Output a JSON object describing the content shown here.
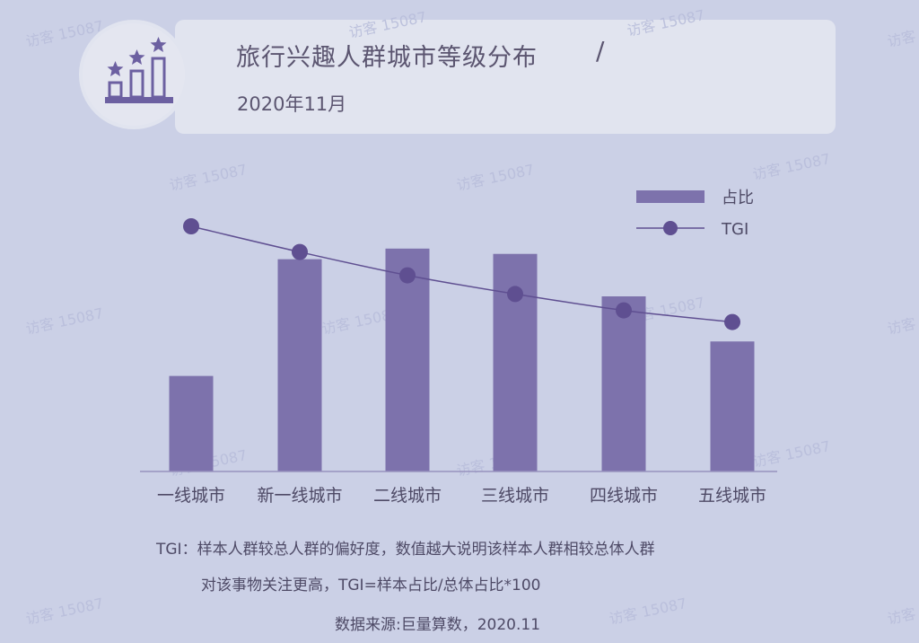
{
  "header": {
    "title": "旅行兴趣人群城市等级分布",
    "title_separator": "/",
    "subtitle": "2020年11月",
    "icon": "stars-podium-icon"
  },
  "chart_data": {
    "type": "bar",
    "categories": [
      "一线城市",
      "新一线城市",
      "二线城市",
      "三线城市",
      "四线城市",
      "五线城市"
    ],
    "series": [
      {
        "name": "占比",
        "kind": "bar",
        "values": [
          18.0,
          40.0,
          42.0,
          41.0,
          33.0,
          24.5
        ]
      },
      {
        "name": "TGI",
        "kind": "line",
        "values": [
          105,
          94,
          84,
          76,
          69,
          64
        ]
      }
    ],
    "ylim_bar": [
      0,
      55
    ],
    "ylim_line": [
      0,
      125
    ],
    "legend": {
      "position": "top-right"
    },
    "grid": false,
    "colors": {
      "bar": "#7d72ac",
      "line": "#5f4f91",
      "marker": "#5f4f91",
      "axis": "#9892be"
    }
  },
  "notes": {
    "line1": "TGI：样本人群较总人群的偏好度，数值越大说明该样本人群相较总体人群",
    "line2": "对该事物关注更高，TGI=样本占比/总体占比*100",
    "source": "数据来源:巨量算数，2020.11"
  },
  "watermark": "访客 15087"
}
